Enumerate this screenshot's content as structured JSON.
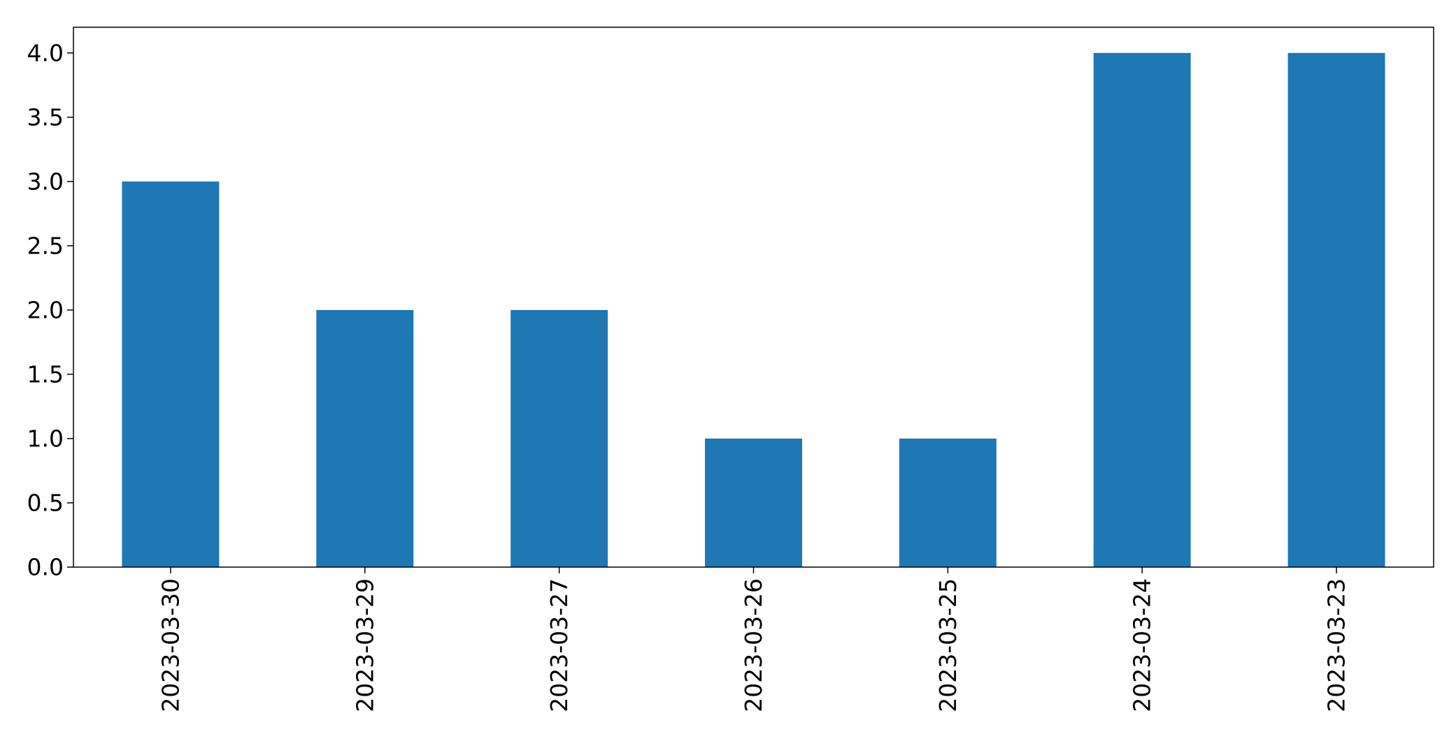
{
  "chart_data": {
    "type": "bar",
    "categories": [
      "2023-03-30",
      "2023-03-29",
      "2023-03-27",
      "2023-03-26",
      "2023-03-25",
      "2023-03-24",
      "2023-03-23"
    ],
    "values": [
      3,
      2,
      2,
      1,
      1,
      4,
      4
    ],
    "title": "",
    "xlabel": "",
    "ylabel": "",
    "ylim": [
      0,
      4.2
    ],
    "yticks": [
      "0.0",
      "0.5",
      "1.0",
      "1.5",
      "2.0",
      "2.5",
      "3.0",
      "3.5",
      "4.0"
    ],
    "grid": false,
    "bar_color": "#1f77b4"
  }
}
